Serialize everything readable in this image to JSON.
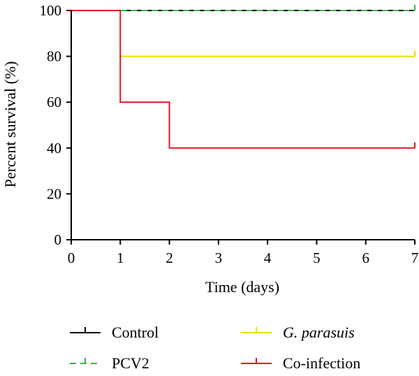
{
  "chart_data": {
    "type": "line",
    "subtype": "kaplan-meier-step",
    "xlabel": "Time (days)",
    "ylabel": "Percent survival (%)",
    "xlim": [
      0,
      7
    ],
    "ylim": [
      0,
      100
    ],
    "xticks": [
      0,
      1,
      2,
      3,
      4,
      5,
      6,
      7
    ],
    "yticks": [
      0,
      20,
      40,
      60,
      80,
      100
    ],
    "grid": false,
    "legend_position": "bottom",
    "series": [
      {
        "name": "Control",
        "color": "#000000",
        "dashed": false,
        "x": [
          0,
          7
        ],
        "y": [
          100,
          100
        ]
      },
      {
        "name": "PCV2",
        "color": "#3cb44b",
        "dashed": true,
        "x": [
          1,
          7
        ],
        "y": [
          100,
          100
        ]
      },
      {
        "name": "G. parasuis",
        "name_italic_part": "G. parasuis",
        "color": "#e8e000",
        "dashed": false,
        "x": [
          1,
          7
        ],
        "y": [
          80,
          80
        ]
      },
      {
        "name": "Co-infection",
        "color": "#e8141c",
        "dashed": false,
        "x": [
          0,
          1,
          1,
          2,
          2,
          7
        ],
        "y": [
          100,
          100,
          60,
          60,
          40,
          40
        ]
      }
    ]
  }
}
